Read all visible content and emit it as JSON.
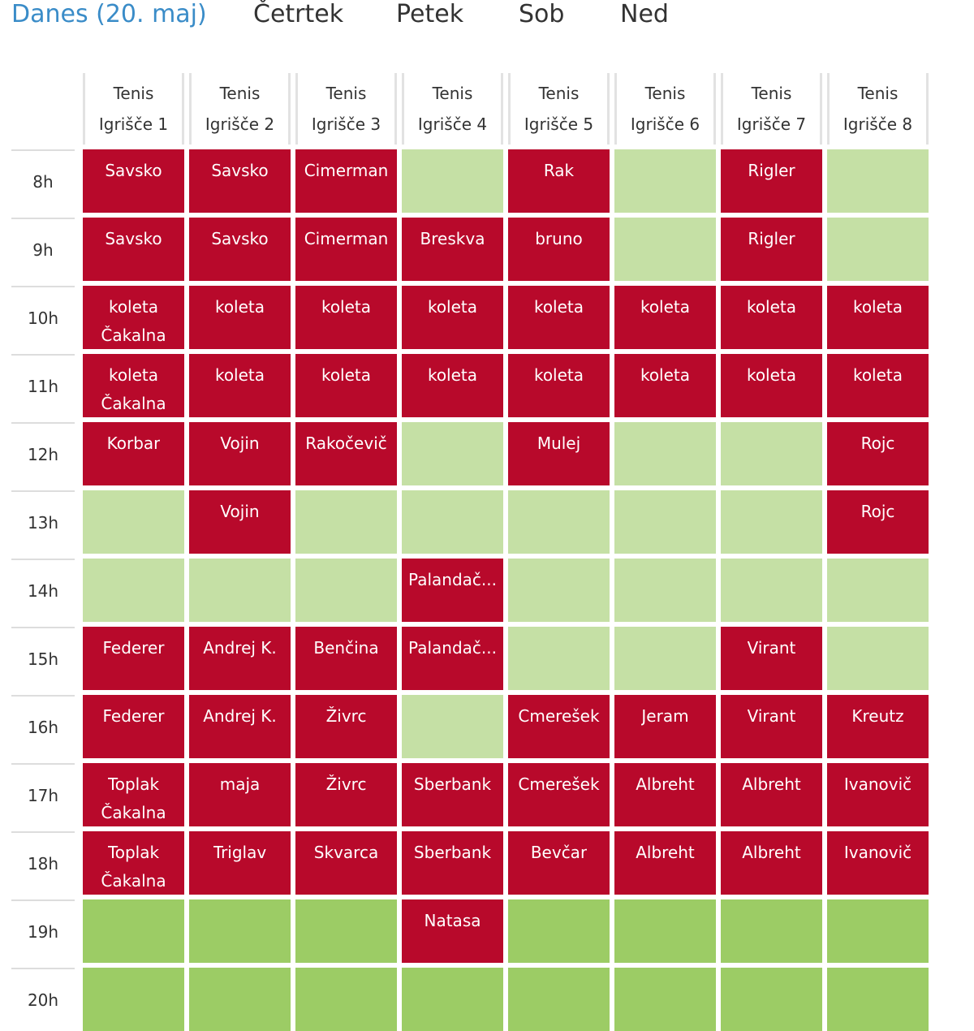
{
  "day_tabs": [
    {
      "label": "Danes (20. maj)",
      "active": true
    },
    {
      "label": "Četrtek",
      "active": false
    },
    {
      "label": "Petek",
      "active": false
    },
    {
      "label": "Sob",
      "active": false
    },
    {
      "label": "Ned",
      "active": false
    }
  ],
  "courts": [
    {
      "sport": "Tenis",
      "name": "Igrišče 1"
    },
    {
      "sport": "Tenis",
      "name": "Igrišče 2"
    },
    {
      "sport": "Tenis",
      "name": "Igrišče 3"
    },
    {
      "sport": "Tenis",
      "name": "Igrišče 4"
    },
    {
      "sport": "Tenis",
      "name": "Igrišče 5"
    },
    {
      "sport": "Tenis",
      "name": "Igrišče 6"
    },
    {
      "sport": "Tenis",
      "name": "Igrišče 7"
    },
    {
      "sport": "Tenis",
      "name": "Igrišče 8"
    }
  ],
  "colors": {
    "booked": "#b8092b",
    "free": "#c5e0a5",
    "free_evening": "#9ccc65",
    "active_tab": "#3a8cc8"
  },
  "rows": [
    {
      "time": "8h",
      "slots": [
        {
          "status": "booked",
          "lines": [
            "Savsko"
          ]
        },
        {
          "status": "booked",
          "lines": [
            "Savsko"
          ]
        },
        {
          "status": "booked",
          "lines": [
            "Cimerman"
          ]
        },
        {
          "status": "free",
          "lines": []
        },
        {
          "status": "booked",
          "lines": [
            "Rak"
          ]
        },
        {
          "status": "free",
          "lines": []
        },
        {
          "status": "booked",
          "lines": [
            "Rigler"
          ]
        },
        {
          "status": "free",
          "lines": []
        }
      ]
    },
    {
      "time": "9h",
      "slots": [
        {
          "status": "booked",
          "lines": [
            "Savsko"
          ]
        },
        {
          "status": "booked",
          "lines": [
            "Savsko"
          ]
        },
        {
          "status": "booked",
          "lines": [
            "Cimerman"
          ]
        },
        {
          "status": "booked",
          "lines": [
            "Breskva"
          ]
        },
        {
          "status": "booked",
          "lines": [
            "bruno"
          ]
        },
        {
          "status": "free",
          "lines": []
        },
        {
          "status": "booked",
          "lines": [
            "Rigler"
          ]
        },
        {
          "status": "free",
          "lines": []
        }
      ]
    },
    {
      "time": "10h",
      "slots": [
        {
          "status": "booked",
          "lines": [
            "koleta",
            "Čakalna"
          ]
        },
        {
          "status": "booked",
          "lines": [
            "koleta"
          ]
        },
        {
          "status": "booked",
          "lines": [
            "koleta"
          ]
        },
        {
          "status": "booked",
          "lines": [
            "koleta"
          ]
        },
        {
          "status": "booked",
          "lines": [
            "koleta"
          ]
        },
        {
          "status": "booked",
          "lines": [
            "koleta"
          ]
        },
        {
          "status": "booked",
          "lines": [
            "koleta"
          ]
        },
        {
          "status": "booked",
          "lines": [
            "koleta"
          ]
        }
      ]
    },
    {
      "time": "11h",
      "slots": [
        {
          "status": "booked",
          "lines": [
            "koleta",
            "Čakalna"
          ]
        },
        {
          "status": "booked",
          "lines": [
            "koleta"
          ]
        },
        {
          "status": "booked",
          "lines": [
            "koleta"
          ]
        },
        {
          "status": "booked",
          "lines": [
            "koleta"
          ]
        },
        {
          "status": "booked",
          "lines": [
            "koleta"
          ]
        },
        {
          "status": "booked",
          "lines": [
            "koleta"
          ]
        },
        {
          "status": "booked",
          "lines": [
            "koleta"
          ]
        },
        {
          "status": "booked",
          "lines": [
            "koleta"
          ]
        }
      ]
    },
    {
      "time": "12h",
      "slots": [
        {
          "status": "booked",
          "lines": [
            "Korbar"
          ]
        },
        {
          "status": "booked",
          "lines": [
            "Vojin"
          ]
        },
        {
          "status": "booked",
          "lines": [
            "Rakočevič"
          ]
        },
        {
          "status": "free",
          "lines": []
        },
        {
          "status": "booked",
          "lines": [
            "Mulej"
          ]
        },
        {
          "status": "free",
          "lines": []
        },
        {
          "status": "free",
          "lines": []
        },
        {
          "status": "booked",
          "lines": [
            "Rojc"
          ]
        }
      ]
    },
    {
      "time": "13h",
      "slots": [
        {
          "status": "free",
          "lines": []
        },
        {
          "status": "booked",
          "lines": [
            "Vojin"
          ]
        },
        {
          "status": "free",
          "lines": []
        },
        {
          "status": "free",
          "lines": []
        },
        {
          "status": "free",
          "lines": []
        },
        {
          "status": "free",
          "lines": []
        },
        {
          "status": "free",
          "lines": []
        },
        {
          "status": "booked",
          "lines": [
            "Rojc"
          ]
        }
      ]
    },
    {
      "time": "14h",
      "slots": [
        {
          "status": "free",
          "lines": []
        },
        {
          "status": "free",
          "lines": []
        },
        {
          "status": "free",
          "lines": []
        },
        {
          "status": "booked",
          "lines": [
            "Palandač..."
          ]
        },
        {
          "status": "free",
          "lines": []
        },
        {
          "status": "free",
          "lines": []
        },
        {
          "status": "free",
          "lines": []
        },
        {
          "status": "free",
          "lines": []
        }
      ]
    },
    {
      "time": "15h",
      "slots": [
        {
          "status": "booked",
          "lines": [
            "Federer"
          ]
        },
        {
          "status": "booked",
          "lines": [
            "Andrej K."
          ]
        },
        {
          "status": "booked",
          "lines": [
            "Benčina"
          ]
        },
        {
          "status": "booked",
          "lines": [
            "Palandač..."
          ]
        },
        {
          "status": "free",
          "lines": []
        },
        {
          "status": "free",
          "lines": []
        },
        {
          "status": "booked",
          "lines": [
            "Virant"
          ]
        },
        {
          "status": "free",
          "lines": []
        }
      ]
    },
    {
      "time": "16h",
      "slots": [
        {
          "status": "booked",
          "lines": [
            "Federer"
          ]
        },
        {
          "status": "booked",
          "lines": [
            "Andrej K."
          ]
        },
        {
          "status": "booked",
          "lines": [
            "Živrc"
          ]
        },
        {
          "status": "free",
          "lines": []
        },
        {
          "status": "booked",
          "lines": [
            "Cmerešek"
          ]
        },
        {
          "status": "booked",
          "lines": [
            "Jeram"
          ]
        },
        {
          "status": "booked",
          "lines": [
            "Virant"
          ]
        },
        {
          "status": "booked",
          "lines": [
            "Kreutz"
          ]
        }
      ]
    },
    {
      "time": "17h",
      "slots": [
        {
          "status": "booked",
          "lines": [
            "Toplak",
            "Čakalna"
          ]
        },
        {
          "status": "booked",
          "lines": [
            "maja"
          ]
        },
        {
          "status": "booked",
          "lines": [
            "Živrc"
          ]
        },
        {
          "status": "booked",
          "lines": [
            "Sberbank"
          ]
        },
        {
          "status": "booked",
          "lines": [
            "Cmerešek"
          ]
        },
        {
          "status": "booked",
          "lines": [
            "Albreht"
          ]
        },
        {
          "status": "booked",
          "lines": [
            "Albreht"
          ]
        },
        {
          "status": "booked",
          "lines": [
            "Ivanovič"
          ]
        }
      ]
    },
    {
      "time": "18h",
      "slots": [
        {
          "status": "booked",
          "lines": [
            "Toplak",
            "Čakalna"
          ]
        },
        {
          "status": "booked",
          "lines": [
            "Triglav"
          ]
        },
        {
          "status": "booked",
          "lines": [
            "Skvarca"
          ]
        },
        {
          "status": "booked",
          "lines": [
            "Sberbank"
          ]
        },
        {
          "status": "booked",
          "lines": [
            "Bevčar"
          ]
        },
        {
          "status": "booked",
          "lines": [
            "Albreht"
          ]
        },
        {
          "status": "booked",
          "lines": [
            "Albreht"
          ]
        },
        {
          "status": "booked",
          "lines": [
            "Ivanovič"
          ]
        }
      ]
    },
    {
      "time": "19h",
      "slots": [
        {
          "status": "free-evening",
          "lines": []
        },
        {
          "status": "free-evening",
          "lines": []
        },
        {
          "status": "free-evening",
          "lines": []
        },
        {
          "status": "booked",
          "lines": [
            "Natasa"
          ]
        },
        {
          "status": "free-evening",
          "lines": []
        },
        {
          "status": "free-evening",
          "lines": []
        },
        {
          "status": "free-evening",
          "lines": []
        },
        {
          "status": "free-evening",
          "lines": []
        }
      ]
    },
    {
      "time": "20h",
      "slots": [
        {
          "status": "free-evening",
          "lines": []
        },
        {
          "status": "free-evening",
          "lines": []
        },
        {
          "status": "free-evening",
          "lines": []
        },
        {
          "status": "free-evening",
          "lines": []
        },
        {
          "status": "free-evening",
          "lines": []
        },
        {
          "status": "free-evening",
          "lines": []
        },
        {
          "status": "free-evening",
          "lines": []
        },
        {
          "status": "free-evening",
          "lines": []
        }
      ]
    }
  ]
}
